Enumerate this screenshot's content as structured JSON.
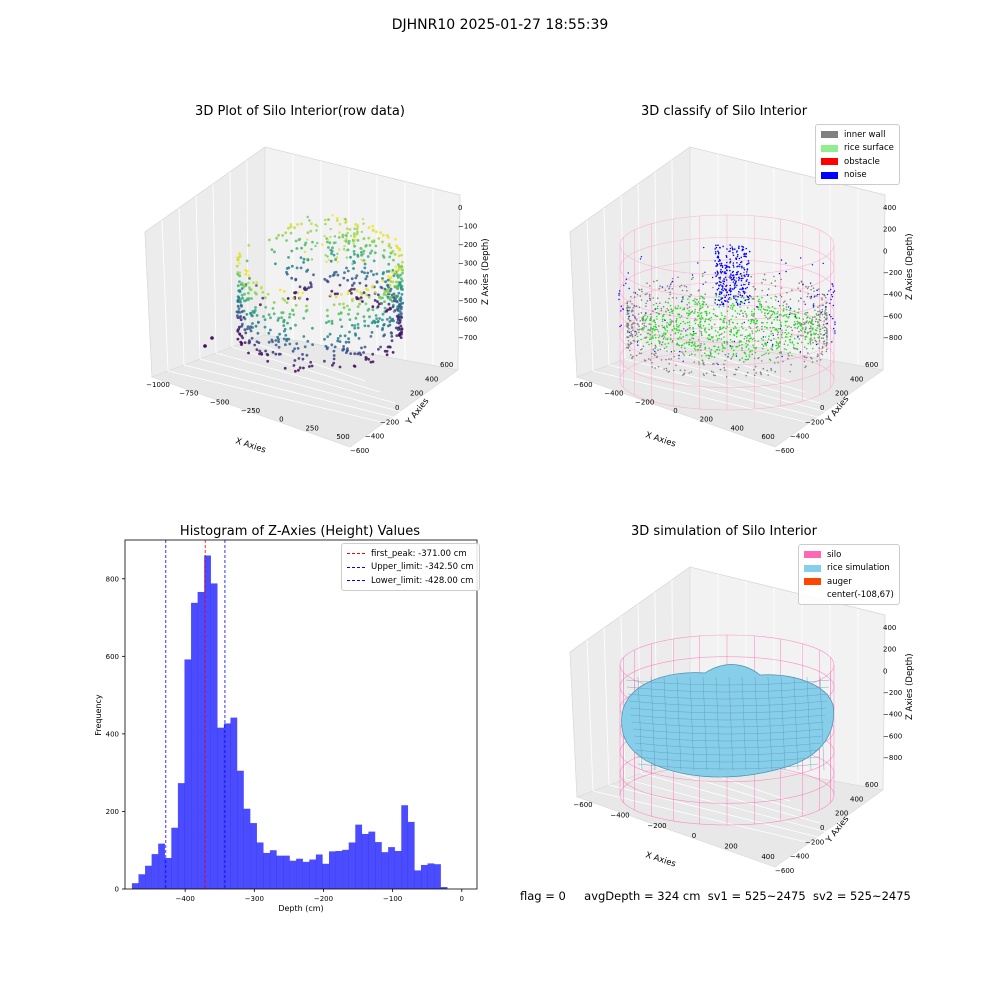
{
  "figure": {
    "suptitle": "DJHNR10 2025-01-27 18:55:39",
    "footer": {
      "flag": "flag = 0",
      "avg_depth": "avgDepth = 324 cm",
      "sv1": "sv1 = 525~2475",
      "sv2": "sv2 = 525~2475"
    }
  },
  "panels": {
    "raw": {
      "title": "3D Plot of Silo Interior(row data)",
      "xlabel": "X Axies",
      "ylabel": "Y Axies",
      "zlabel": "Z Axies (Depth)",
      "xticks": [
        "−1000",
        "−750",
        "−500",
        "−250",
        "0",
        "250",
        "500"
      ],
      "yticks": [
        "600",
        "400",
        "200",
        "0",
        "−200",
        "−400",
        "−600"
      ],
      "zticks": [
        "0",
        "−100",
        "−200",
        "−300",
        "−400",
        "−500",
        "−600",
        "−700"
      ],
      "colormap": "viridis"
    },
    "classify": {
      "title": "3D classify of Silo Interior",
      "xlabel": "X Axies",
      "ylabel": "Y Axies",
      "zlabel": "Z Axies (Depth)",
      "xticks": [
        "−600",
        "−400",
        "−200",
        "0",
        "200",
        "400",
        "600"
      ],
      "yticks": [
        "600",
        "400",
        "200",
        "0",
        "−200",
        "−400",
        "−600"
      ],
      "zticks": [
        "400",
        "200",
        "0",
        "−200",
        "−400",
        "−600",
        "−800"
      ],
      "legend": [
        {
          "label": "inner wall",
          "color": "#808080"
        },
        {
          "label": "rice surface",
          "color": "#90ee90"
        },
        {
          "label": "obstacle",
          "color": "#ff0000"
        },
        {
          "label": "noise",
          "color": "#0000ff"
        }
      ]
    },
    "simulation": {
      "title": "3D simulation of Silo Interior",
      "xlabel": "X Axies",
      "ylabel": "Y Axies",
      "zlabel": "Z Axies (Depth)",
      "xticks": [
        "−600",
        "−400",
        "−200",
        "0",
        "200",
        "400"
      ],
      "yticks": [
        "600",
        "400",
        "200",
        "0",
        "−200",
        "−400",
        "−600"
      ],
      "zticks": [
        "400",
        "200",
        "0",
        "−200",
        "−400",
        "−600",
        "−800"
      ],
      "legend": [
        {
          "label": "silo",
          "color": "#ff69b4"
        },
        {
          "label": "rice simulation",
          "color": "#87ceeb"
        },
        {
          "label": "auger",
          "color": "#ff4500"
        },
        {
          "label": "center(-108,67)",
          "color": ""
        }
      ]
    }
  },
  "chart_data": {
    "type": "bar",
    "title": "Histogram of Z-Axies (Height) Values",
    "xlabel": "Depth (cm)",
    "ylabel": "Frequency",
    "xlim": [
      -487,
      22
    ],
    "ylim": [
      0,
      900
    ],
    "xticks": [
      -400,
      -300,
      -200,
      -100,
      0
    ],
    "xtick_labels": [
      "−400",
      "−300",
      "−200",
      "−100",
      "0"
    ],
    "yticks": [
      0,
      200,
      400,
      600,
      800
    ],
    "bar_color": "#0000ff",
    "bin_width": 9.5,
    "bin_start": -477,
    "values": [
      15,
      38,
      60,
      90,
      117,
      80,
      158,
      273,
      592,
      738,
      766,
      860,
      788,
      416,
      427,
      442,
      305,
      207,
      170,
      120,
      93,
      100,
      86,
      86,
      73,
      78,
      70,
      76,
      89,
      65,
      97,
      98,
      101,
      120,
      166,
      142,
      148,
      121,
      95,
      108,
      98,
      216,
      173,
      48,
      62,
      66,
      64,
      5
    ],
    "vlines": [
      {
        "name": "first_peak",
        "label": "first_peak: -371.00 cm",
        "x": -371,
        "color": "#ff0000"
      },
      {
        "name": "upper_limit",
        "label": "Upper_limit: -342.50 cm",
        "x": -342.5,
        "color": "#0000ff"
      },
      {
        "name": "lower_limit",
        "label": "Lower_limit: -428.00 cm",
        "x": -428,
        "color": "#0000ff"
      }
    ],
    "legend_position": "upper right"
  }
}
